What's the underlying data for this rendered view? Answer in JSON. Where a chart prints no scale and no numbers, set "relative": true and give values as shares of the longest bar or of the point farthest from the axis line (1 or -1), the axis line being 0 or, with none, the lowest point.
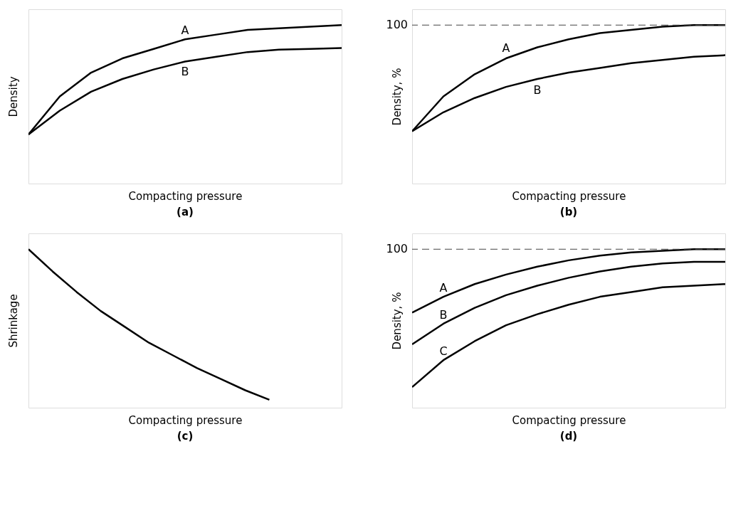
{
  "chart_data": [
    {
      "type": "line",
      "title": "(a)",
      "xlabel": "Compacting pressure",
      "ylabel": "Density",
      "relative": true,
      "categories": [
        null,
        null,
        null,
        null,
        null,
        null,
        null,
        null,
        null,
        null,
        null
      ],
      "series": [
        {
          "name": "A",
          "color": "#000000",
          "values": [
            0.31,
            0.55,
            0.7,
            0.79,
            0.85,
            0.91,
            0.94,
            0.97,
            0.98,
            0.99,
            1.0
          ]
        },
        {
          "name": "B",
          "color": "#000000",
          "values": [
            0.31,
            0.46,
            0.58,
            0.66,
            0.72,
            0.77,
            0.8,
            0.83,
            0.845,
            0.85,
            0.855
          ]
        }
      ]
    },
    {
      "type": "line",
      "title": "(b)",
      "xlabel": "Compacting pressure",
      "ylabel": "Density, %",
      "relative": true,
      "categories": [
        null,
        null,
        null,
        null,
        null,
        null,
        null,
        null,
        null,
        null,
        null
      ],
      "series": [
        {
          "name": "A",
          "color": "#000000",
          "values": [
            0.33,
            0.55,
            0.69,
            0.79,
            0.86,
            0.91,
            0.95,
            0.97,
            0.99,
            1.0,
            1.0
          ]
        },
        {
          "name": "B",
          "color": "#000000",
          "values": [
            0.33,
            0.45,
            0.54,
            0.61,
            0.66,
            0.7,
            0.73,
            0.76,
            0.78,
            0.8,
            0.81
          ]
        }
      ],
      "ref_lines": [
        {
          "axis": "y",
          "value": 1.0,
          "label": "100",
          "line_style": "dashed"
        }
      ]
    },
    {
      "type": "line",
      "title": "(c)",
      "xlabel": "Compacting pressure",
      "ylabel": "Shrinkage",
      "relative": true,
      "categories": [
        null,
        null,
        null,
        null,
        null,
        null,
        null,
        null,
        null,
        null,
        null,
        null,
        null,
        null
      ],
      "series": [
        {
          "color": "#000000",
          "values": [
            1.0,
            0.86,
            0.73,
            0.61,
            0.51,
            0.41,
            0.33,
            0.25,
            0.18,
            0.11,
            0.05,
            null,
            null,
            null
          ]
        }
      ]
    },
    {
      "type": "line",
      "title": "(d)",
      "xlabel": "Compacting pressure",
      "ylabel": "Density, %",
      "relative": true,
      "categories": [
        null,
        null,
        null,
        null,
        null,
        null,
        null,
        null,
        null,
        null,
        null
      ],
      "series": [
        {
          "name": "A",
          "color": "#000000",
          "values": [
            0.6,
            0.7,
            0.78,
            0.84,
            0.89,
            0.93,
            0.96,
            0.98,
            0.99,
            1.0,
            1.0
          ]
        },
        {
          "name": "B",
          "color": "#000000",
          "values": [
            0.4,
            0.53,
            0.63,
            0.71,
            0.77,
            0.82,
            0.86,
            0.89,
            0.91,
            0.92,
            0.92
          ]
        },
        {
          "name": "C",
          "color": "#000000",
          "values": [
            0.13,
            0.3,
            0.42,
            0.52,
            0.59,
            0.65,
            0.7,
            0.73,
            0.76,
            0.77,
            0.78
          ]
        }
      ],
      "ref_lines": [
        {
          "axis": "y",
          "value": 1.0,
          "label": "100",
          "line_style": "dashed"
        }
      ]
    }
  ]
}
